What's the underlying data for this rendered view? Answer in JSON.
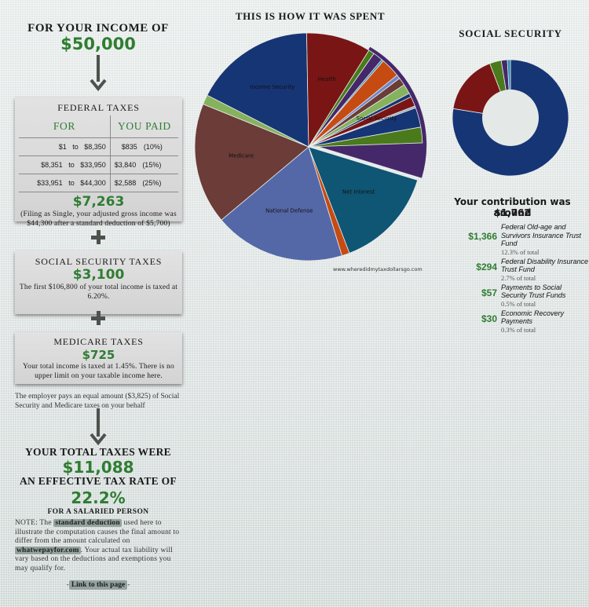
{
  "income": {
    "label": "FOR YOUR INCOME OF",
    "value": "$50,000"
  },
  "federal": {
    "title": "FEDERAL TAXES",
    "col_for": "FOR",
    "col_paid": "YOU PAID",
    "rows": [
      {
        "from": "$1",
        "to_word": "to",
        "to": "$8,350",
        "paid": "$835",
        "rate": "(10%)"
      },
      {
        "from": "$8,351",
        "to_word": "to",
        "to": "$33,950",
        "paid": "$3,840",
        "rate": "(15%)"
      },
      {
        "from": "$33,951",
        "to_word": "to",
        "to": "$44,300",
        "paid": "$2,588",
        "rate": "(25%)"
      }
    ],
    "total": "$7,263",
    "note": "(Filing as Single, your adjusted gross income was $44,300 after a standard deduction of $5,700)"
  },
  "social_security_tax": {
    "title": "SOCIAL SECURITY TAXES",
    "value": "$3,100",
    "note": "The first $106,800 of your total income is taxed at 6.20%."
  },
  "medicare_tax": {
    "title": "MEDICARE TAXES",
    "value": "$725",
    "note": "Your total income is taxed at 1.45%. There is no upper limit on your taxable income here."
  },
  "employer_note": "The employer pays an equal amount ($3,825) of Social Security and Medicare taxes on your behalf",
  "totals": {
    "label": "YOUR TOTAL TAXES WERE",
    "value": "$11,088",
    "rate_label": "AN EFFECTIVE TAX RATE OF",
    "rate_value": "22.2%",
    "salaried": "FOR A SALARIED PERSON"
  },
  "note": {
    "prefix": "NOTE: The",
    "link1": "standard deduction",
    "middle": "used here to illustrate the computation causes the final amount to differ from the amount calculated on",
    "link2": "whatwepayfor.com",
    "suffix": ". Your actual tax liability will vary based on the deductions and exemptions you may qualify for."
  },
  "permalink": {
    "left": "-",
    "label": "Link to this page",
    "right": "-"
  },
  "pie": {
    "title": "THIS IS HOW IT WAS SPENT",
    "watermark": "www.wheredidmytaxdollarsgo.com"
  },
  "social_security_panel": {
    "title": "SOCIAL SECURITY",
    "contrib_label": "Your contribution was around",
    "contrib_value": "$1,762",
    "items": [
      {
        "amount": "$1,366",
        "desc": "Federal Old-age and Survivors Insurance Trust Fund",
        "pct": "12.3% of total"
      },
      {
        "amount": "$294",
        "desc": "Federal Disability Insurance Trust Fund",
        "pct": "2.7% of total"
      },
      {
        "amount": "$57",
        "desc": "Payments to Social Security Trust Funds",
        "pct": "0.5% of total"
      },
      {
        "amount": "$30",
        "desc": "Economic Recovery Payments",
        "pct": "0.3% of total"
      }
    ]
  },
  "chart_data": [
    {
      "type": "pie",
      "title": "THIS IS HOW IT WAS SPENT",
      "note": "Approximate shares estimated from slice angles (degrees, clockwise from 12 o'clock); exploded slice: Social Security",
      "slices": [
        {
          "label": "Social Security",
          "value": 17.5,
          "color": "#45286a",
          "start": 30,
          "end": 107,
          "explode": true
        },
        {
          "label": "Net Interest",
          "value": 8.9,
          "color": "#0f5574",
          "start": 107,
          "end": 159
        },
        {
          "label": "",
          "value": 1.1,
          "color": "#c64b12",
          "start": 159,
          "end": 163
        },
        {
          "label": "National Defense",
          "value": 18.9,
          "color": "#5468a8",
          "start": 163,
          "end": 230
        },
        {
          "label": "Medicare",
          "value": 17.2,
          "color": "#6b3c38",
          "start": 230,
          "end": 292
        },
        {
          "label": "",
          "value": 1.4,
          "color": "#86b25e",
          "start": 292,
          "end": 297
        },
        {
          "label": "Income Security",
          "value": 17.2,
          "color": "#163575",
          "start": 297,
          "end": 359
        },
        {
          "label": "Health",
          "value": 9.2,
          "color": "#7a1515",
          "start": 359,
          "end": 392
        },
        {
          "label": "",
          "value": 0.8,
          "color": "#4a7a1c",
          "start": 392,
          "end": 395
        },
        {
          "label": "",
          "value": 1.4,
          "color": "#45286a",
          "start": 395,
          "end": 400
        },
        {
          "label": "",
          "value": 0.3,
          "color": "#2b8bb0",
          "start": 400,
          "end": 401
        },
        {
          "label": "",
          "value": 2.8,
          "color": "#c64b12",
          "start": 401,
          "end": 411
        },
        {
          "label": "",
          "value": 0.6,
          "color": "#6f86c8",
          "start": 411,
          "end": 413
        },
        {
          "label": "",
          "value": 1.1,
          "color": "#6b3c38",
          "start": 413,
          "end": 417
        },
        {
          "label": "",
          "value": 1.4,
          "color": "#86b25e",
          "start": 417,
          "end": 422
        },
        {
          "label": "",
          "value": 0.6,
          "color": "#163575",
          "start": 422,
          "end": 424
        },
        {
          "label": "",
          "value": 1.4,
          "color": "#7a1515",
          "start": 424,
          "end": 429
        },
        {
          "label": "",
          "value": 0.3,
          "color": "#9aa4b8",
          "start": 429,
          "end": 430
        },
        {
          "label": "",
          "value": 2.8,
          "color": "#163575",
          "start": 430,
          "end": 440
        },
        {
          "label": "",
          "value": 2.2,
          "color": "#4a7a1c",
          "start": 440,
          "end": 448
        }
      ]
    },
    {
      "type": "pie",
      "title": "SOCIAL SECURITY",
      "subtype": "donut",
      "slices": [
        {
          "label": "Federal Old-age and Survivors Insurance Trust Fund",
          "value": 1366,
          "pct": 77.5,
          "color": "#163575"
        },
        {
          "label": "Federal Disability Insurance Trust Fund",
          "value": 294,
          "pct": 16.7,
          "color": "#7a1515"
        },
        {
          "label": "Payments to Social Security Trust Funds",
          "value": 57,
          "pct": 3.2,
          "color": "#4a7a1c"
        },
        {
          "label": "Economic Recovery Payments",
          "value": 30,
          "pct": 1.7,
          "color": "#45286a"
        },
        {
          "label": "Other",
          "value": 15,
          "pct": 0.9,
          "color": "#2b8bb0"
        }
      ]
    }
  ]
}
